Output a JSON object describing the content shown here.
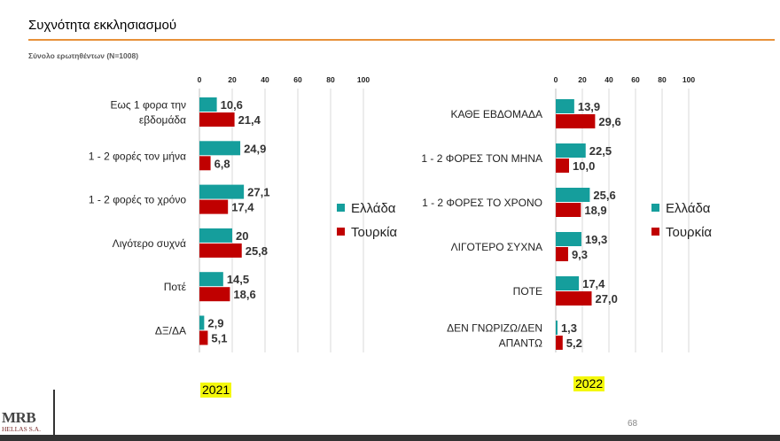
{
  "header": {
    "title": "Συχνότητα εκκλησιασμού",
    "subtitle": "Σύνολο ερωτηθέντων (N=1008)"
  },
  "footer": {
    "logo_text": "MRB",
    "logo_subtext": "HELLAS S.A.",
    "page_number": "68"
  },
  "colors": {
    "greece": "#159e9c",
    "turkey": "#c00000",
    "accent_rule": "#e8913a",
    "gridline": "#d9d9d9"
  },
  "chart_data": [
    {
      "type": "bar",
      "orientation": "horizontal",
      "year_label": "2021",
      "xlim": [
        0,
        100
      ],
      "xticks": [
        "0",
        "20",
        "40",
        "60",
        "80",
        "100"
      ],
      "categories": [
        [
          "Εως 1 φορα την",
          "εβδομάδα"
        ],
        [
          "1 - 2 φορές τον μήνα"
        ],
        [
          "1 - 2 φορές το χρόνο"
        ],
        [
          "Λιγότερο συχνά"
        ],
        [
          "Ποτέ"
        ],
        [
          "ΔΞ/ΔΑ"
        ]
      ],
      "series": [
        {
          "name": "Ελλάδα",
          "values": [
            10.6,
            24.9,
            27.1,
            20,
            14.5,
            2.9
          ],
          "labels": [
            "10,6",
            "24,9",
            "27,1",
            "20",
            "14,5",
            "2,9"
          ]
        },
        {
          "name": "Τουρκία",
          "values": [
            21.4,
            6.8,
            17.4,
            25.8,
            18.6,
            5.1
          ],
          "labels": [
            "21,4",
            "6,8",
            "17,4",
            "25,8",
            "18,6",
            "5,1"
          ]
        }
      ],
      "legend": [
        "Ελλάδα",
        "Τουρκία"
      ],
      "legend_position": "right"
    },
    {
      "type": "bar",
      "orientation": "horizontal",
      "year_label": "2022",
      "xlim": [
        0,
        100
      ],
      "xticks": [
        "0",
        "20",
        "40",
        "60",
        "80",
        "100"
      ],
      "categories": [
        [
          "ΚΑΘΕ ΕΒΔΟΜΑΔΑ"
        ],
        [
          "1 - 2 ΦΟΡΕΣ ΤΟΝ ΜΗΝΑ"
        ],
        [
          "1 - 2 ΦΟΡΕΣ ΤΟ ΧΡΟΝΟ"
        ],
        [
          "ΛΙΓΟΤΕΡΟ ΣΥΧΝΑ"
        ],
        [
          "ΠΟΤΕ"
        ],
        [
          "ΔΕΝ ΓΝΩΡΙΖΩ/ΔΕΝ",
          "ΑΠΑΝΤΩ"
        ]
      ],
      "series": [
        {
          "name": "Ελλάδα",
          "values": [
            13.9,
            22.5,
            25.6,
            19.3,
            17.4,
            1.3
          ],
          "labels": [
            "13,9",
            "22,5",
            "25,6",
            "19,3",
            "17,4",
            "1,3"
          ]
        },
        {
          "name": "Τουρκία",
          "values": [
            29.6,
            10.0,
            18.9,
            9.3,
            27.0,
            5.2
          ],
          "labels": [
            "29,6",
            "10,0",
            "18,9",
            "9,3",
            "27,0",
            "5,2"
          ]
        }
      ],
      "legend": [
        "Ελλάδα",
        "Τουρκία"
      ],
      "legend_position": "right"
    }
  ]
}
